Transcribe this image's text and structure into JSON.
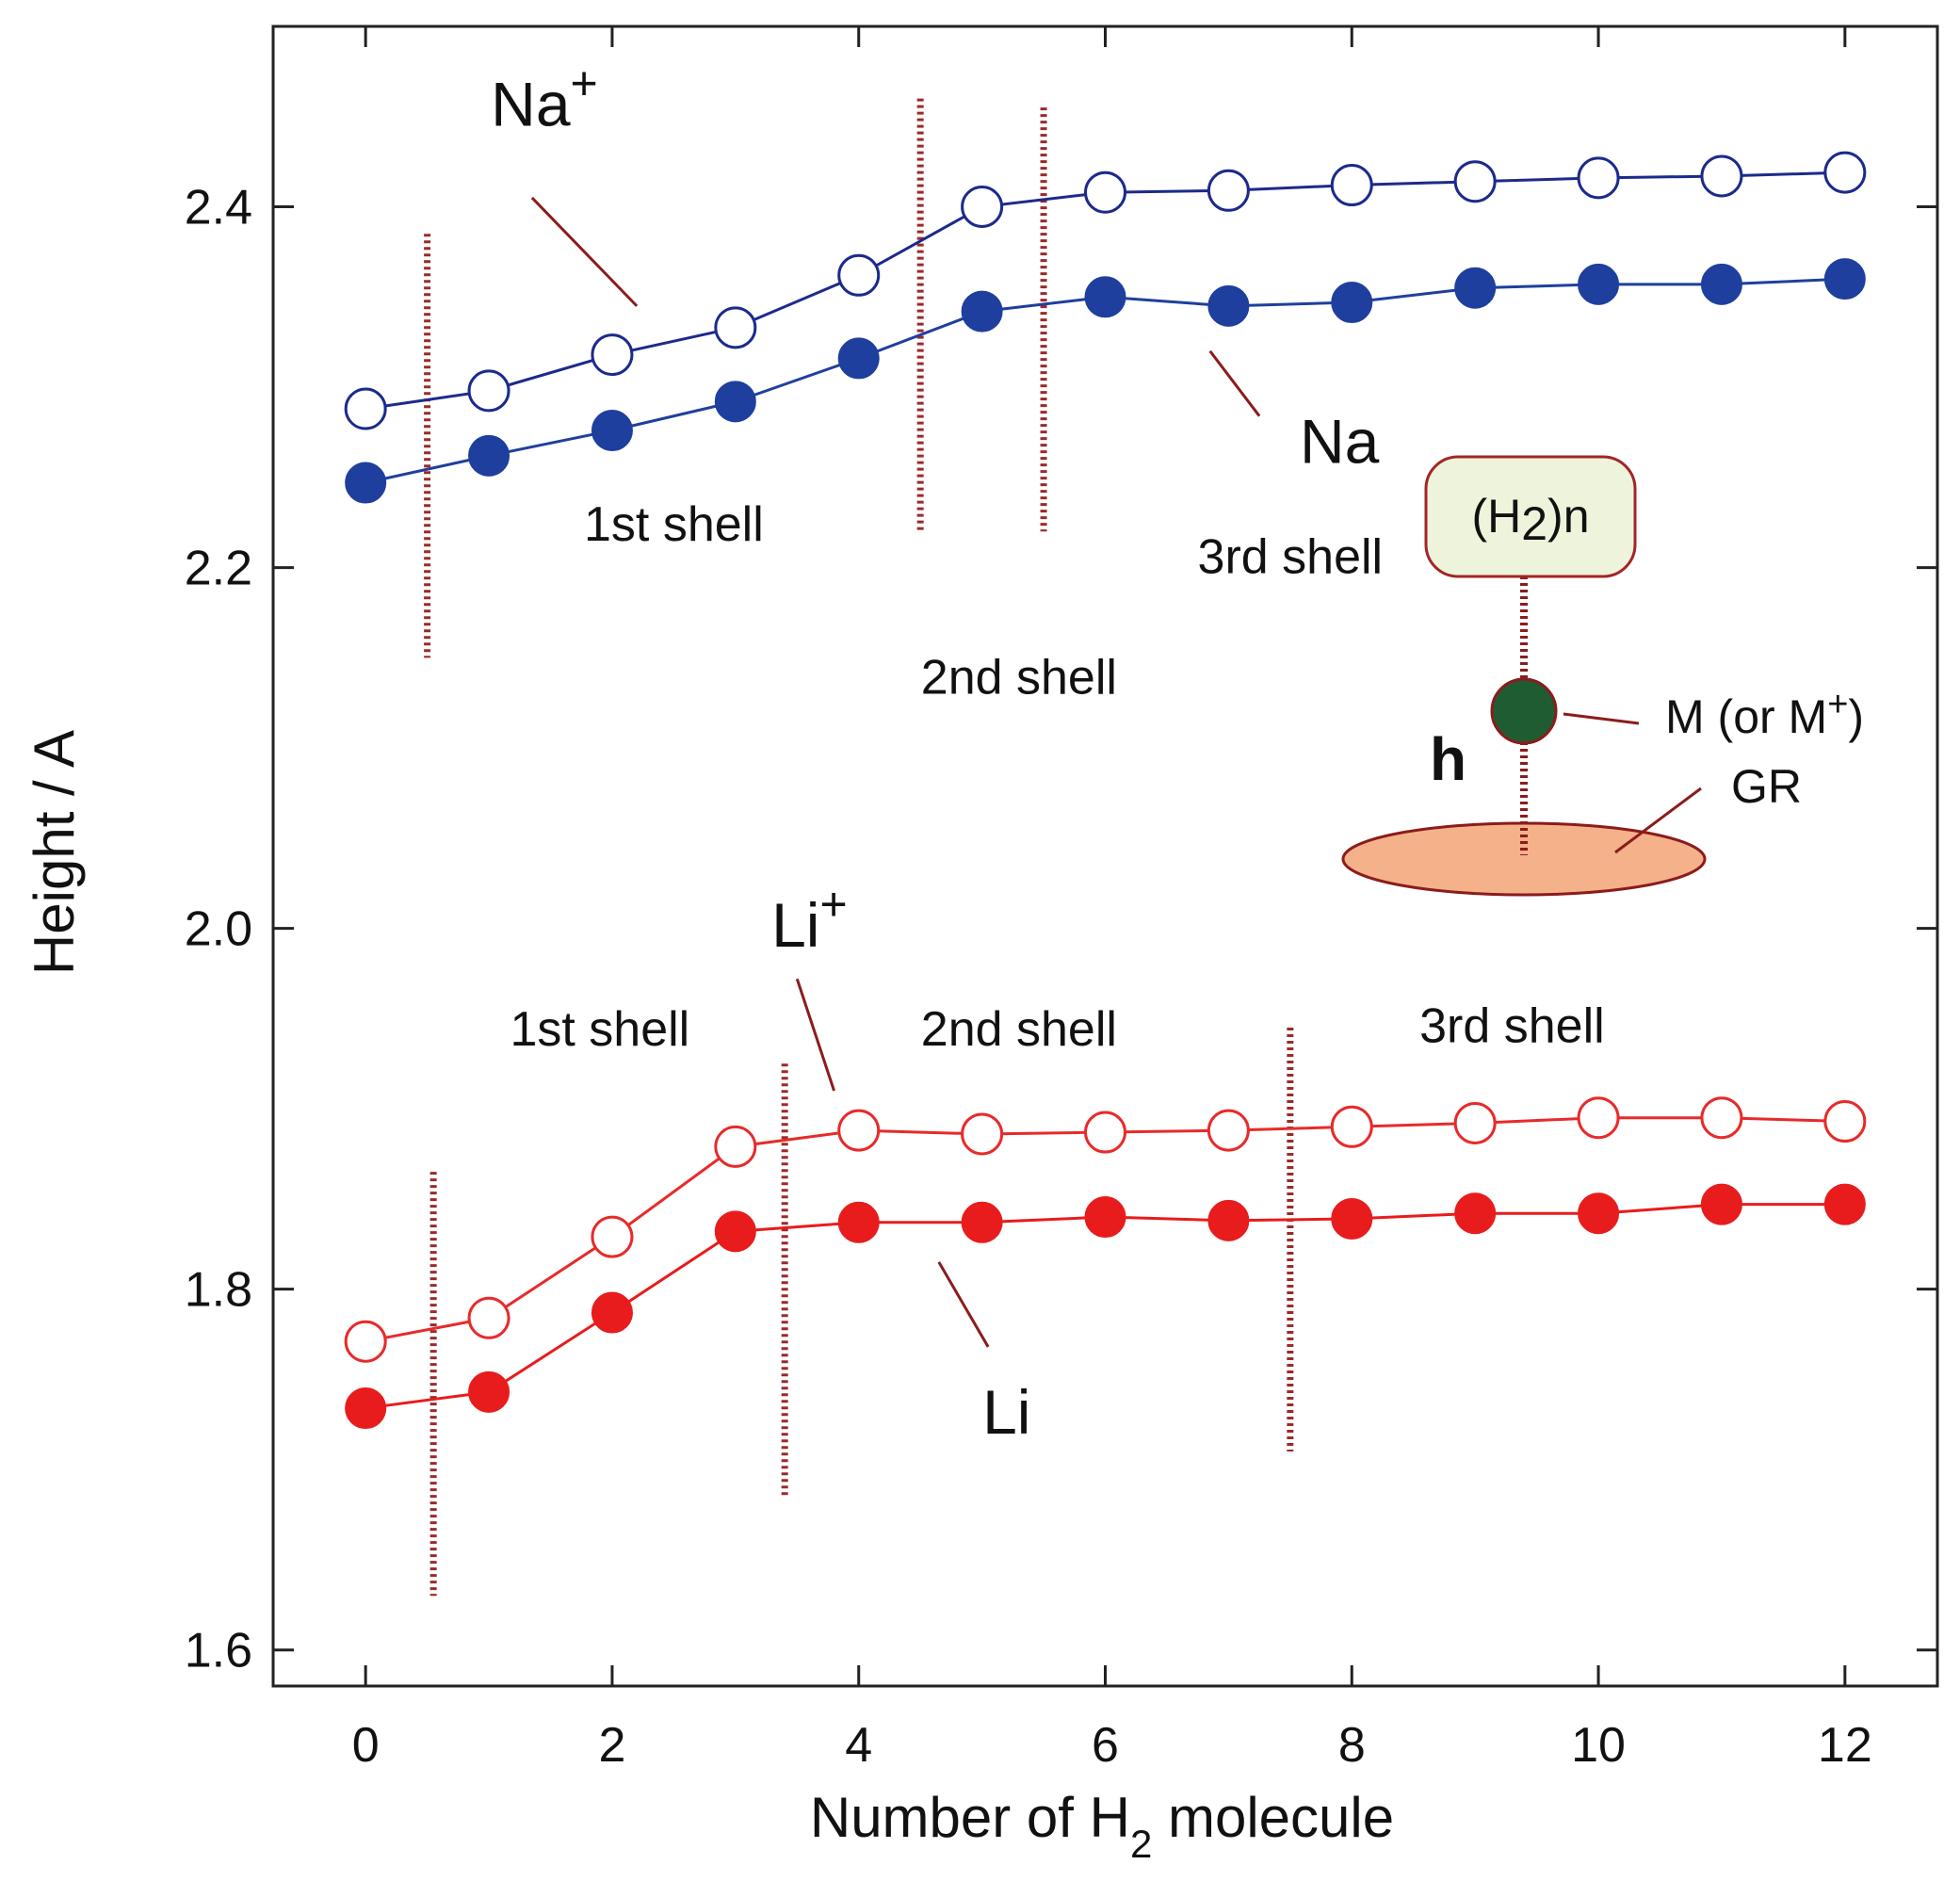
{
  "chart_data": {
    "type": "line",
    "title": "",
    "xlabel": "Number of H",
    "xlabel_sub": "2",
    "xlabel_tail": " molecule",
    "ylabel": "Height / A",
    "xlim": [
      -0.75,
      12.75
    ],
    "ylim": [
      1.58,
      2.5
    ],
    "xticks": [
      0,
      2,
      4,
      6,
      8,
      10,
      12
    ],
    "xtick_labels": [
      "0",
      "2",
      "4",
      "6",
      "8",
      "10",
      "12"
    ],
    "yticks": [
      1.6,
      1.8,
      2.0,
      2.2,
      2.4
    ],
    "ytick_labels": [
      "1.6",
      "1.8",
      "2.0",
      "2.2",
      "2.4"
    ],
    "x": [
      0,
      1,
      2,
      3,
      4,
      5,
      6,
      7,
      8,
      9,
      10,
      11,
      12
    ],
    "series": [
      {
        "name": "Na+",
        "label_main": "Na",
        "label_sup": "+",
        "color": "#1c2a8c",
        "marker": "open",
        "values": [
          2.288,
          2.298,
          2.318,
          2.333,
          2.362,
          2.4,
          2.408,
          2.409,
          2.412,
          2.414,
          2.416,
          2.417,
          2.419
        ]
      },
      {
        "name": "Na",
        "label_main": "Na",
        "label_sup": "",
        "color": "#1f3f9e",
        "marker": "filled",
        "values": [
          2.247,
          2.262,
          2.276,
          2.292,
          2.316,
          2.342,
          2.35,
          2.345,
          2.347,
          2.355,
          2.357,
          2.357,
          2.36
        ]
      },
      {
        "name": "Li+",
        "label_main": "Li",
        "label_sup": "+",
        "color": "#e82a2a",
        "marker": "open",
        "values": [
          1.771,
          1.784,
          1.829,
          1.879,
          1.888,
          1.886,
          1.887,
          1.888,
          1.89,
          1.892,
          1.895,
          1.895,
          1.893
        ]
      },
      {
        "name": "Li",
        "label_main": "Li",
        "label_sup": "",
        "color": "#e81c1c",
        "marker": "filled",
        "values": [
          1.734,
          1.743,
          1.787,
          1.832,
          1.837,
          1.837,
          1.84,
          1.838,
          1.839,
          1.842,
          1.842,
          1.847,
          1.847
        ]
      }
    ],
    "shell_boundaries": [
      {
        "group": "Na",
        "x": 0.5,
        "y_range": [
          2.15,
          2.385
        ]
      },
      {
        "group": "Na",
        "x": 4.5,
        "y_range": [
          2.22,
          2.46
        ]
      },
      {
        "group": "Na",
        "x": 5.5,
        "y_range": [
          2.22,
          2.455
        ]
      },
      {
        "group": "Li",
        "x": 0.55,
        "y_range": [
          1.63,
          1.865
        ]
      },
      {
        "group": "Li",
        "x": 3.4,
        "y_range": [
          1.685,
          1.925
        ]
      },
      {
        "group": "Li",
        "x": 7.5,
        "y_range": [
          1.71,
          1.945
        ]
      }
    ],
    "shell_labels": [
      {
        "text": "1st shell",
        "x": 2.5,
        "y": 2.215
      },
      {
        "text": "2nd shell",
        "x": 5.3,
        "y": 2.13
      },
      {
        "text": "3rd shell",
        "x": 7.5,
        "y": 2.197
      },
      {
        "text": "1st shell",
        "x": 1.9,
        "y": 1.935
      },
      {
        "text": "2nd shell",
        "x": 5.3,
        "y": 1.935
      },
      {
        "text": "3rd shell",
        "x": 9.3,
        "y": 1.937
      }
    ],
    "annotations": [
      {
        "series": "Na+",
        "text_x": 1.45,
        "text_y": 2.445,
        "line": [
          [
            1.35,
            2.405
          ],
          [
            2.2,
            2.345
          ]
        ]
      },
      {
        "series": "Na",
        "text_x": 7.9,
        "text_y": 2.258,
        "line": [
          [
            6.85,
            2.32
          ],
          [
            7.25,
            2.284
          ]
        ]
      },
      {
        "series": "Li+",
        "text_x": 3.6,
        "text_y": 1.99,
        "line": [
          [
            3.5,
            1.972
          ],
          [
            3.8,
            1.91
          ]
        ]
      },
      {
        "series": "Li",
        "text_x": 5.2,
        "text_y": 1.72,
        "line": [
          [
            4.65,
            1.815
          ],
          [
            5.05,
            1.768
          ]
        ]
      }
    ],
    "inset": {
      "cluster_main": "(H",
      "cluster_sub": "2",
      "cluster_tail": ")n",
      "metal_label": "M (or M",
      "metal_label_sup": "+",
      "metal_label_tail": ")",
      "height_symbol": "h",
      "substrate_label": "GR",
      "cluster_fill": "#eef3dc",
      "cluster_stroke": "#a22626",
      "metal_fill": "#1f5c32",
      "substrate_fill": "#f4b18a",
      "substrate_stroke": "#8b1c1c",
      "line_color": "#8b1c1c"
    },
    "grid": false,
    "legend": "none"
  }
}
